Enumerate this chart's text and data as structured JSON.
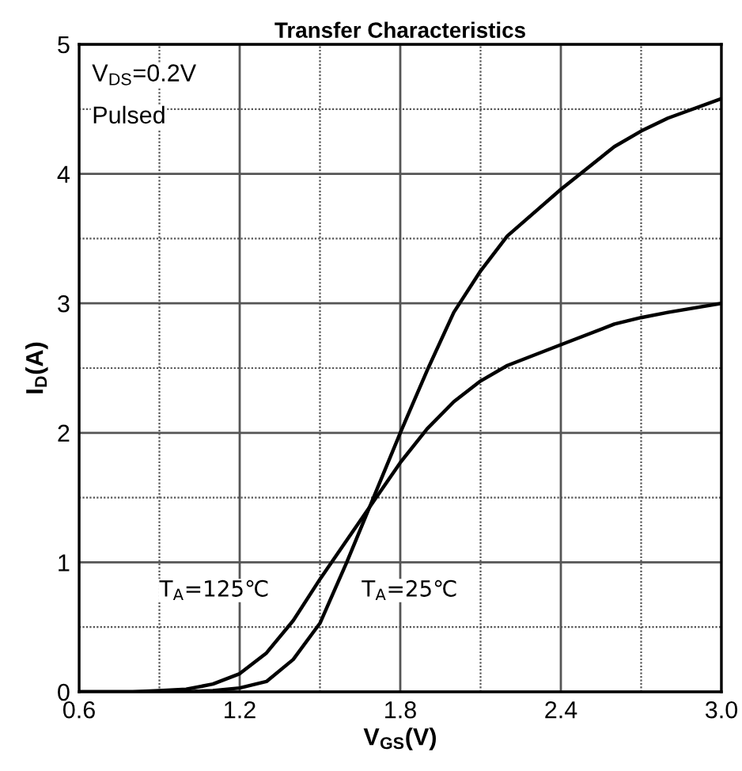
{
  "chart_data": {
    "type": "line",
    "title": "Transfer Characteristics",
    "xlabel": "V$_{GS}$(V)",
    "ylabel": "I$_{D}$(A)",
    "xlim": [
      0.6,
      3.0
    ],
    "xticks": [
      0.6,
      1.2,
      1.8,
      2.4,
      {
        "value": 3,
        "label": "3.0"
      }
    ],
    "ylim": [
      0,
      5
    ],
    "yticks": [
      0,
      1,
      2,
      3,
      4,
      5
    ],
    "grid": true,
    "marker": "none",
    "line_style": "solid",
    "series": [
      {
        "color": "#000000",
        "x": [
          0.6,
          0.8,
          0.9,
          1.0,
          1.1,
          1.2,
          1.3,
          1.4,
          1.5,
          1.6,
          1.7,
          1.8,
          1.9,
          2.0,
          2.1,
          2.2,
          2.4,
          2.6,
          2.7,
          2.8,
          3.0
        ],
        "values": [
          0,
          0,
          0.01,
          0.02,
          0.06,
          0.14,
          0.3,
          0.55,
          0.87,
          1.17,
          1.47,
          1.77,
          2.03,
          2.24,
          2.4,
          2.52,
          2.68,
          2.84,
          2.89,
          2.93,
          3.0
        ]
      },
      {
        "color": "#000000",
        "x": [
          0.6,
          0.8,
          1.0,
          1.1,
          1.2,
          1.3,
          1.4,
          1.5,
          1.6,
          1.7,
          1.8,
          1.9,
          2.0,
          2.1,
          2.2,
          2.4,
          2.6,
          2.7,
          2.8,
          3.0
        ],
        "values": [
          0,
          0,
          0,
          0.01,
          0.03,
          0.08,
          0.25,
          0.53,
          1.0,
          1.5,
          2.0,
          2.48,
          2.93,
          3.25,
          3.52,
          3.88,
          4.21,
          4.33,
          4.43,
          4.58
        ]
      }
    ],
    "annotations": [
      "V$_{DS}$=0.2V",
      "Pulsed",
      "T$_{A}$=125℃",
      "T$_{A}$=25℃"
    ]
  }
}
